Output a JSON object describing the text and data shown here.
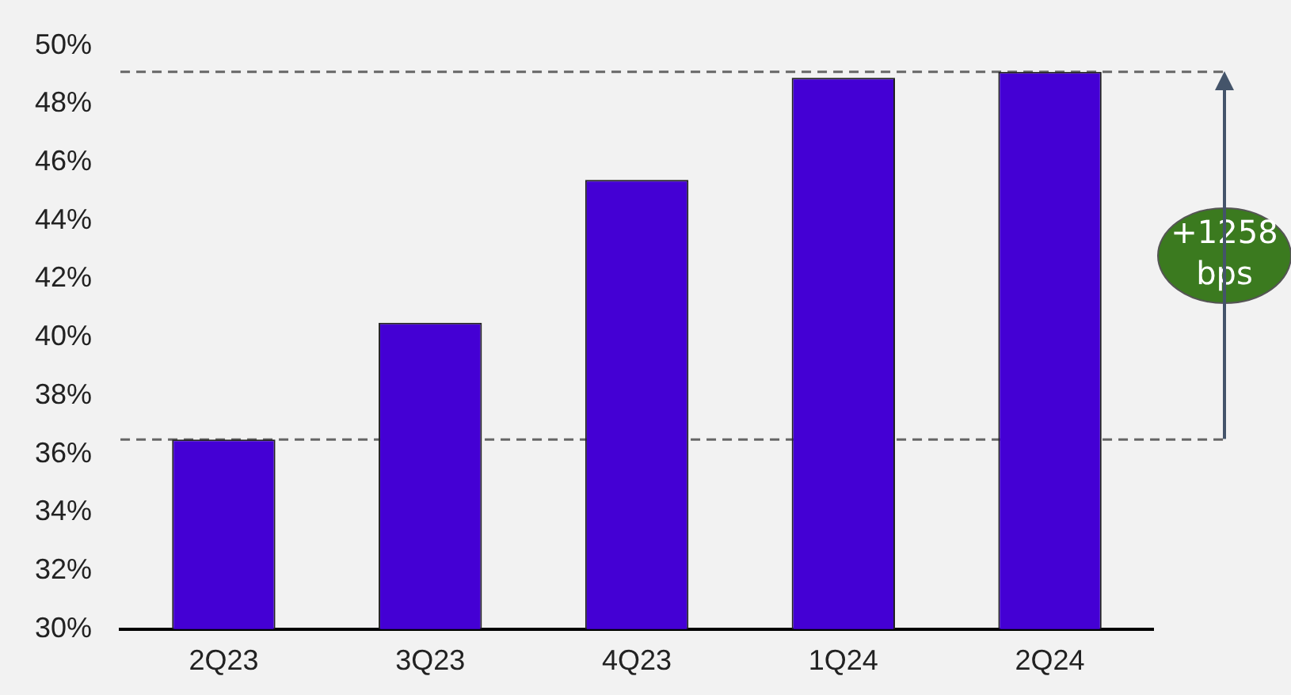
{
  "chart_data": {
    "type": "bar",
    "categories": [
      "2Q23",
      "3Q23",
      "4Q23",
      "1Q24",
      "2Q24"
    ],
    "values": [
      36.5,
      40.5,
      45.4,
      48.9,
      49.1
    ],
    "color": "#4400d4",
    "ylim": [
      30,
      50
    ],
    "yticks": [
      {
        "value": 30,
        "label": "30%"
      },
      {
        "value": 32,
        "label": "32%"
      },
      {
        "value": 34,
        "label": "34%"
      },
      {
        "value": 36,
        "label": "36%"
      },
      {
        "value": 38,
        "label": "38%"
      },
      {
        "value": 40,
        "label": "40%"
      },
      {
        "value": 42,
        "label": "42%"
      },
      {
        "value": 44,
        "label": "44%"
      },
      {
        "value": 46,
        "label": "46%"
      },
      {
        "value": 48,
        "label": "48%"
      },
      {
        "value": 50,
        "label": "50%"
      }
    ],
    "grid": false,
    "legend": false,
    "ref_lines": [
      {
        "axis": "y",
        "value": 36.5,
        "color": "#666666",
        "line_style": "dashed"
      },
      {
        "axis": "y",
        "value": 49.1,
        "color": "#666666",
        "line_style": "dashed"
      }
    ],
    "annotations": [
      "+1258 bps"
    ]
  }
}
